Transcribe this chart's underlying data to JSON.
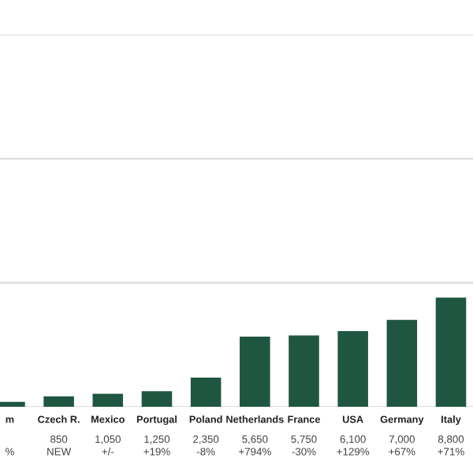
{
  "chart_data": {
    "type": "bar",
    "categories": [
      "m",
      "Czech R.",
      "Mexico",
      "Portugal",
      "Poland",
      "Netherlands",
      "France",
      "USA",
      "Germany",
      "Italy"
    ],
    "values": [
      400,
      850,
      1050,
      1250,
      2350,
      5650,
      5750,
      6100,
      7000,
      8800
    ],
    "value_labels": [
      "%",
      "850\nNEW",
      "1,050\n+/-",
      "1,250\n+19%",
      "2,350\n-8%",
      "5,650\n+794%",
      "5,750\n-30%",
      "6,100\n+129%",
      "7,000\n+67%",
      "8,800\n+71%"
    ],
    "color": "#1f5641",
    "ylim": [
      0,
      30000
    ],
    "yticks": [
      {
        "value": 0,
        "label": null
      },
      {
        "value": 10000,
        "label": null
      },
      {
        "value": 20000,
        "label": null
      },
      {
        "value": 30000,
        "label": null
      }
    ],
    "tick_labels": "x",
    "grid": "y"
  }
}
